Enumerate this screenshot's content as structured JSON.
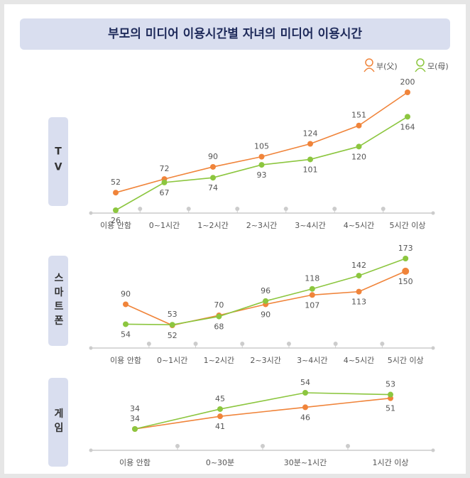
{
  "title": "부모의 미디어 이용시간별 자녀의 미디어 이용시간",
  "chart_data": [
    {
      "type": "line",
      "label": "TV",
      "categories": [
        "이용 안함",
        "0~1시간",
        "1~2시간",
        "2~3시간",
        "3~4시간",
        "4~5시간",
        "5시간 이상"
      ],
      "series": [
        {
          "name": "부(父)",
          "color": "#f0843a",
          "values": [
            52,
            72,
            90,
            105,
            124,
            151,
            200
          ]
        },
        {
          "name": "모(母)",
          "color": "#8cc63f",
          "values": [
            26,
            67,
            74,
            93,
            101,
            120,
            164
          ]
        }
      ]
    },
    {
      "type": "line",
      "label": "스마트폰",
      "categories": [
        "이용 안함",
        "0~1시간",
        "1~2시간",
        "2~3시간",
        "3~4시간",
        "4~5시간",
        "5시간 이상"
      ],
      "series": [
        {
          "name": "부(父)",
          "color": "#f0843a",
          "values": [
            90,
            52,
            70,
            90,
            107,
            113,
            150
          ]
        },
        {
          "name": "모(母)",
          "color": "#8cc63f",
          "values": [
            54,
            53,
            68,
            96,
            118,
            142,
            173
          ]
        }
      ]
    },
    {
      "type": "line",
      "label": "게임",
      "categories": [
        "이용 안함",
        "0~30분",
        "30분~1시간",
        "1시간 이상"
      ],
      "series": [
        {
          "name": "부(父)",
          "color": "#f0843a",
          "values": [
            34,
            41,
            46,
            51
          ]
        },
        {
          "name": "모(母)",
          "color": "#8cc63f",
          "values": [
            34,
            45,
            54,
            53
          ]
        }
      ]
    }
  ]
}
